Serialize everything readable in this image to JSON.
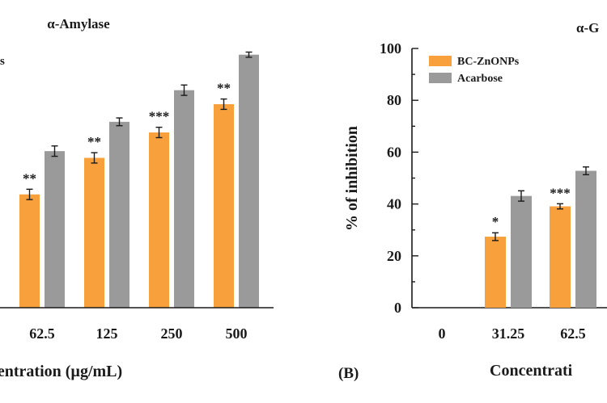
{
  "colors": {
    "bc": "#F7A03C",
    "acarbose": "#9A9A9A",
    "axis": "#1a1a1a"
  },
  "chart_data": [
    {
      "type": "bar",
      "title": "α-Amylase",
      "legend_fragment": "s",
      "categories": [
        "62.5",
        "125",
        "250",
        "500"
      ],
      "xlabel": "centration (µg/mL)",
      "ylim": [
        0,
        100
      ],
      "series": [
        {
          "name": "BC-ZnONPs",
          "values": [
            43.7,
            57.8,
            67.6,
            78.5
          ],
          "errors": [
            2,
            2,
            2,
            2
          ]
        },
        {
          "name": "Acarbose",
          "values": [
            60.4,
            71.7,
            83.9,
            97.6
          ],
          "errors": [
            2,
            1.5,
            2,
            1
          ]
        }
      ],
      "annotations": [
        "**",
        "**",
        "***",
        "**"
      ]
    },
    {
      "type": "bar",
      "title": "α-G",
      "panel_label": "(B)",
      "categories": [
        "0",
        "31.25",
        "62.5"
      ],
      "xlabel": "Concentrati",
      "ylabel": "% of inhibition",
      "ylim": [
        0,
        100
      ],
      "yticks": [
        "0",
        "20",
        "40",
        "60",
        "80",
        "100"
      ],
      "series": [
        {
          "name": "BC-ZnONPs",
          "values": [
            0,
            27.4,
            39.1
          ],
          "errors": [
            0,
            1.5,
            1
          ]
        },
        {
          "name": "Acarbose",
          "values": [
            0,
            43.1,
            52.8
          ],
          "errors": [
            0,
            2,
            1.5
          ]
        }
      ],
      "annotations": [
        "",
        "*",
        "***"
      ],
      "legend": [
        "BC-ZnONPs",
        "Acarbose"
      ]
    }
  ]
}
